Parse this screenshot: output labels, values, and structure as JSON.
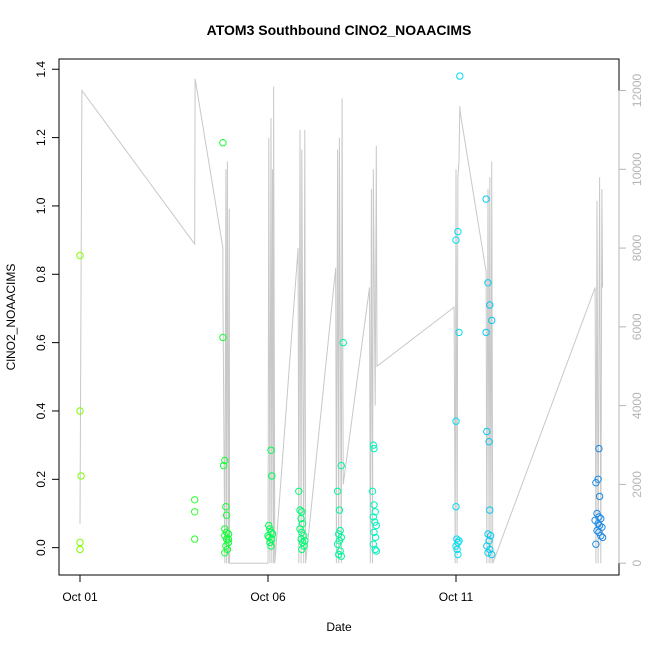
{
  "chart_data": {
    "type": "scatter",
    "title": "ATOM3 Southbound ClNO2_NOAACIMS",
    "xlabel": "Date",
    "ylabel": "ClNO2_NOAACIMS",
    "x_ticks": [
      "Oct 01",
      "Oct 06",
      "Oct 11"
    ],
    "x_range_days": [
      0.0,
      14.8
    ],
    "ylim": [
      -0.08,
      1.43
    ],
    "y_ticks": [
      "0.0",
      "0.2",
      "0.4",
      "0.6",
      "0.8",
      "1.0",
      "1.2",
      "1.4"
    ],
    "y2_range": [
      -300,
      12800
    ],
    "y2_ticks": [
      "0",
      "2000",
      "4000",
      "6000",
      "8000",
      "10000",
      "12000"
    ],
    "y2_color": "#b5b5b5",
    "grid": false,
    "legend": "none",
    "series": [
      {
        "marker": "open-circle",
        "color_by_time": true,
        "color_start": "#7fff00",
        "color_end": "#1e90ff",
        "points": [
          [
            0.0,
            0.855
          ],
          [
            0.0,
            0.4
          ],
          [
            0.03,
            0.21
          ],
          [
            0.0,
            0.015
          ],
          [
            0.0,
            -0.005
          ],
          [
            3.05,
            0.14
          ],
          [
            3.05,
            0.105
          ],
          [
            3.05,
            0.025
          ],
          [
            3.8,
            1.185
          ],
          [
            3.8,
            0.615
          ],
          [
            3.82,
            0.24
          ],
          [
            3.85,
            0.255
          ],
          [
            3.88,
            0.12
          ],
          [
            3.9,
            0.095
          ],
          [
            3.85,
            0.055
          ],
          [
            3.9,
            0.045
          ],
          [
            3.95,
            0.04
          ],
          [
            3.85,
            0.035
          ],
          [
            3.9,
            0.025
          ],
          [
            3.95,
            0.015
          ],
          [
            3.88,
            0.005
          ],
          [
            3.92,
            -0.005
          ],
          [
            3.85,
            -0.015
          ],
          [
            3.95,
            0.025
          ],
          [
            5.08,
            0.285
          ],
          [
            5.1,
            0.21
          ],
          [
            5.02,
            0.065
          ],
          [
            5.05,
            0.055
          ],
          [
            5.08,
            0.045
          ],
          [
            5.0,
            0.035
          ],
          [
            5.1,
            0.025
          ],
          [
            5.05,
            0.015
          ],
          [
            5.08,
            0.005
          ],
          [
            5.03,
            0.03
          ],
          [
            5.12,
            0.04
          ],
          [
            5.82,
            0.165
          ],
          [
            5.85,
            0.11
          ],
          [
            5.9,
            0.105
          ],
          [
            5.88,
            0.085
          ],
          [
            5.92,
            0.07
          ],
          [
            5.85,
            0.055
          ],
          [
            5.9,
            0.045
          ],
          [
            5.95,
            0.035
          ],
          [
            5.88,
            0.025
          ],
          [
            5.92,
            0.015
          ],
          [
            5.96,
            0.005
          ],
          [
            5.9,
            -0.005
          ],
          [
            5.98,
            0.02
          ],
          [
            7.0,
            0.6
          ],
          [
            6.95,
            0.24
          ],
          [
            6.85,
            0.165
          ],
          [
            6.9,
            0.11
          ],
          [
            6.92,
            0.05
          ],
          [
            6.88,
            0.04
          ],
          [
            6.95,
            0.03
          ],
          [
            6.9,
            0.02
          ],
          [
            6.85,
            0.01
          ],
          [
            6.92,
            -0.01
          ],
          [
            6.88,
            -0.02
          ],
          [
            6.95,
            -0.025
          ],
          [
            7.8,
            0.3
          ],
          [
            7.82,
            0.29
          ],
          [
            7.78,
            0.165
          ],
          [
            7.82,
            0.125
          ],
          [
            7.85,
            0.105
          ],
          [
            7.8,
            0.09
          ],
          [
            7.84,
            0.075
          ],
          [
            7.88,
            0.065
          ],
          [
            7.82,
            0.045
          ],
          [
            7.86,
            0.03
          ],
          [
            7.8,
            0.01
          ],
          [
            7.85,
            -0.005
          ],
          [
            7.88,
            -0.01
          ],
          [
            10.1,
            1.38
          ],
          [
            10.05,
            0.925
          ],
          [
            10.0,
            0.9
          ],
          [
            10.08,
            0.63
          ],
          [
            10.0,
            0.37
          ],
          [
            10.0,
            0.12
          ],
          [
            10.02,
            0.025
          ],
          [
            10.05,
            0.015
          ],
          [
            10.0,
            0.005
          ],
          [
            10.08,
            0.02
          ],
          [
            10.03,
            -0.005
          ],
          [
            10.05,
            -0.02
          ],
          [
            10.8,
            1.02
          ],
          [
            10.85,
            0.775
          ],
          [
            10.9,
            0.71
          ],
          [
            10.95,
            0.665
          ],
          [
            10.8,
            0.63
          ],
          [
            10.82,
            0.34
          ],
          [
            10.88,
            0.31
          ],
          [
            10.9,
            0.11
          ],
          [
            10.85,
            0.04
          ],
          [
            10.92,
            0.035
          ],
          [
            10.88,
            0.02
          ],
          [
            10.82,
            0.005
          ],
          [
            10.9,
            -0.005
          ],
          [
            10.85,
            -0.015
          ],
          [
            10.95,
            -0.02
          ],
          [
            13.8,
            0.29
          ],
          [
            13.78,
            0.2
          ],
          [
            13.72,
            0.19
          ],
          [
            13.82,
            0.15
          ],
          [
            13.75,
            0.1
          ],
          [
            13.8,
            0.09
          ],
          [
            13.85,
            0.085
          ],
          [
            13.7,
            0.08
          ],
          [
            13.78,
            0.07
          ],
          [
            13.82,
            0.065
          ],
          [
            13.88,
            0.06
          ],
          [
            13.75,
            0.05
          ],
          [
            13.8,
            0.045
          ],
          [
            13.85,
            0.035
          ],
          [
            13.9,
            0.03
          ],
          [
            13.72,
            0.01
          ]
        ]
      },
      {
        "name_hidden": true,
        "type": "line",
        "axis": "right",
        "color": "#c8c8c8",
        "points": [
          [
            0.0,
            1000
          ],
          [
            0.05,
            12000
          ],
          [
            3.05,
            8100
          ],
          [
            3.06,
            12300
          ],
          [
            3.8,
            8000
          ],
          [
            3.8,
            7000
          ],
          [
            3.85,
            0
          ],
          [
            3.88,
            10000
          ],
          [
            3.9,
            0
          ],
          [
            3.92,
            10200
          ],
          [
            3.95,
            0
          ],
          [
            3.97,
            9000
          ],
          [
            3.98,
            0
          ],
          [
            5.0,
            0
          ],
          [
            5.02,
            10800
          ],
          [
            5.05,
            0
          ],
          [
            5.08,
            11300
          ],
          [
            5.1,
            0
          ],
          [
            5.12,
            10000
          ],
          [
            5.15,
            0
          ],
          [
            5.15,
            12100
          ],
          [
            5.18,
            0
          ],
          [
            5.8,
            8000
          ],
          [
            5.82,
            0
          ],
          [
            5.85,
            11000
          ],
          [
            5.88,
            0
          ],
          [
            5.9,
            10500
          ],
          [
            5.95,
            0
          ],
          [
            5.98,
            11000
          ],
          [
            6.0,
            0
          ],
          [
            6.8,
            7500
          ],
          [
            6.82,
            0
          ],
          [
            6.85,
            10500
          ],
          [
            6.88,
            0
          ],
          [
            6.9,
            10800
          ],
          [
            6.95,
            0
          ],
          [
            6.97,
            11800
          ],
          [
            7.0,
            2000
          ],
          [
            7.7,
            7000
          ],
          [
            7.72,
            0
          ],
          [
            7.75,
            9500
          ],
          [
            7.78,
            0
          ],
          [
            7.8,
            10000
          ],
          [
            7.85,
            4000
          ],
          [
            7.88,
            10600
          ],
          [
            7.9,
            5000
          ],
          [
            9.95,
            6500
          ],
          [
            9.98,
            0
          ],
          [
            10.0,
            10000
          ],
          [
            10.03,
            0
          ],
          [
            10.05,
            9800
          ],
          [
            10.08,
            10200
          ],
          [
            10.1,
            11600
          ],
          [
            10.12,
            11400
          ],
          [
            10.8,
            7400
          ],
          [
            10.82,
            0
          ],
          [
            10.85,
            9500
          ],
          [
            10.88,
            0
          ],
          [
            10.9,
            9800
          ],
          [
            10.93,
            0
          ],
          [
            10.95,
            10200
          ],
          [
            10.98,
            0
          ],
          [
            13.7,
            7000
          ],
          [
            13.72,
            0
          ],
          [
            13.75,
            9200
          ],
          [
            13.78,
            0
          ],
          [
            13.82,
            9800
          ],
          [
            13.85,
            0
          ],
          [
            13.88,
            9500
          ],
          [
            13.9,
            7000
          ]
        ]
      }
    ]
  }
}
